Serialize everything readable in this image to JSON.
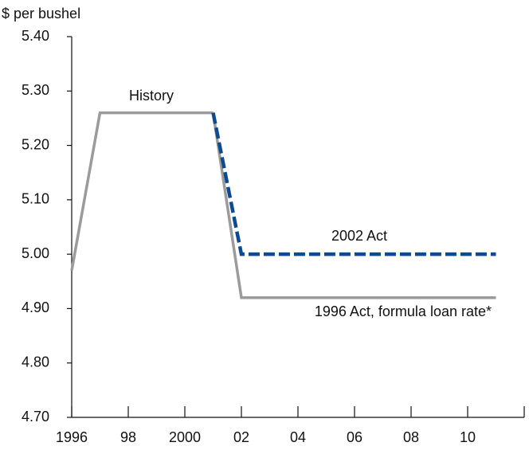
{
  "chart_data": {
    "type": "line",
    "y_axis_label": "$ per bushel",
    "xlim": [
      1996,
      2012
    ],
    "xticks": [
      1996,
      {
        "value": 1998,
        "label": "98"
      },
      2000,
      {
        "value": 2002,
        "label": "02"
      },
      {
        "value": 2004,
        "label": "04"
      },
      {
        "value": 2006,
        "label": "06"
      },
      {
        "value": 2008,
        "label": "08"
      },
      {
        "value": 2010,
        "label": "10"
      }
    ],
    "ylim": [
      4.7,
      5.4
    ],
    "yticks": [
      {
        "value": 4.7,
        "label": "4.70"
      },
      {
        "value": 4.8,
        "label": "4.80"
      },
      {
        "value": 4.9,
        "label": "4.90"
      },
      {
        "value": 5.0,
        "label": "5.00"
      },
      {
        "value": 5.1,
        "label": "5.10"
      },
      {
        "value": 5.2,
        "label": "5.20"
      },
      {
        "value": 5.3,
        "label": "5.30"
      },
      {
        "value": 5.4,
        "label": "5.40"
      }
    ],
    "series": [
      {
        "name": "History",
        "color": "#9b9b9b",
        "dashed": false,
        "x": [
          1996,
          1997,
          2001
        ],
        "values": [
          4.97,
          5.26,
          5.26
        ]
      },
      {
        "name": "1996 Act, formula loan rate*",
        "color": "#9b9b9b",
        "dashed": false,
        "x": [
          2001,
          2002,
          2011
        ],
        "values": [
          5.26,
          4.92,
          4.92
        ]
      },
      {
        "name": "2002 Act",
        "color": "#0d4a8f",
        "dashed": true,
        "x": [
          2001,
          2002,
          2011
        ],
        "values": [
          5.26,
          5.0,
          5.0
        ]
      }
    ]
  }
}
